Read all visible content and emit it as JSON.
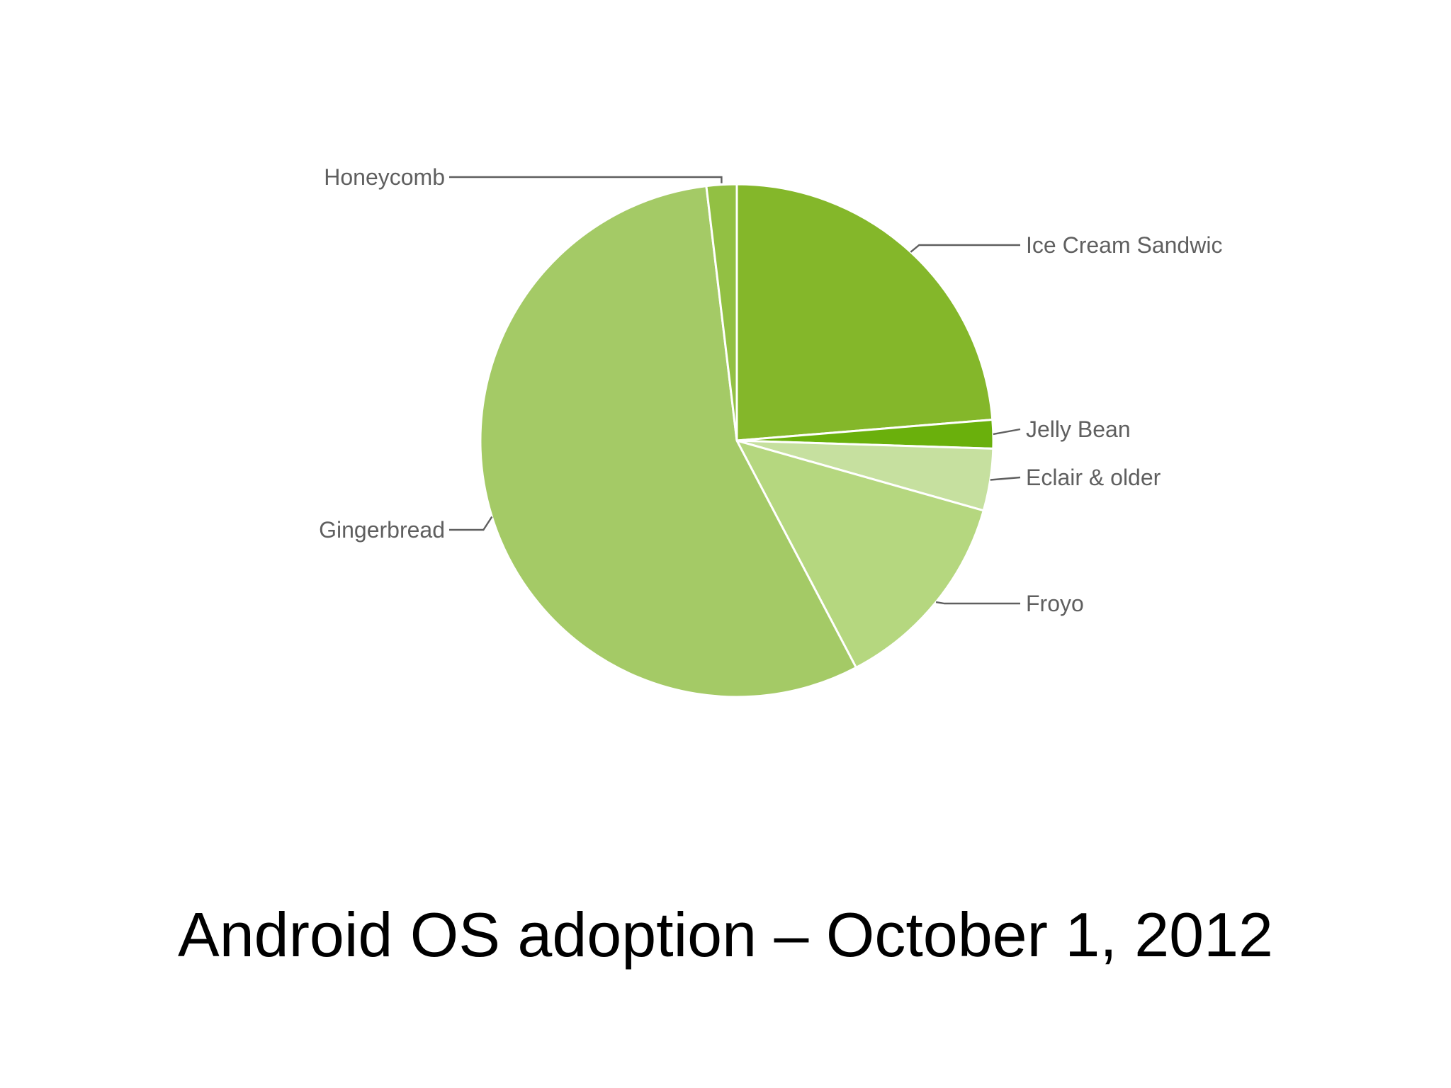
{
  "chart_data": {
    "type": "pie",
    "title": "Android OS adoption – October 1, 2012",
    "slices": [
      {
        "label": "Ice Cream Sandwic",
        "value": 23.7,
        "color": "#84b72a"
      },
      {
        "label": "Jelly Bean",
        "value": 1.8,
        "color": "#6ab00c"
      },
      {
        "label": "Eclair & older",
        "value": 3.9,
        "color": "#c6e09f"
      },
      {
        "label": "Froyo",
        "value": 12.9,
        "color": "#b5d77f"
      },
      {
        "label": "Gingerbread",
        "value": 55.8,
        "color": "#a4ca66"
      },
      {
        "label": "Honeycomb",
        "value": 1.9,
        "color": "#92c043"
      }
    ],
    "legend": "none",
    "start": "top, clockwise"
  },
  "footer": {
    "title": "Android OS adoption – October 1, 2012"
  }
}
